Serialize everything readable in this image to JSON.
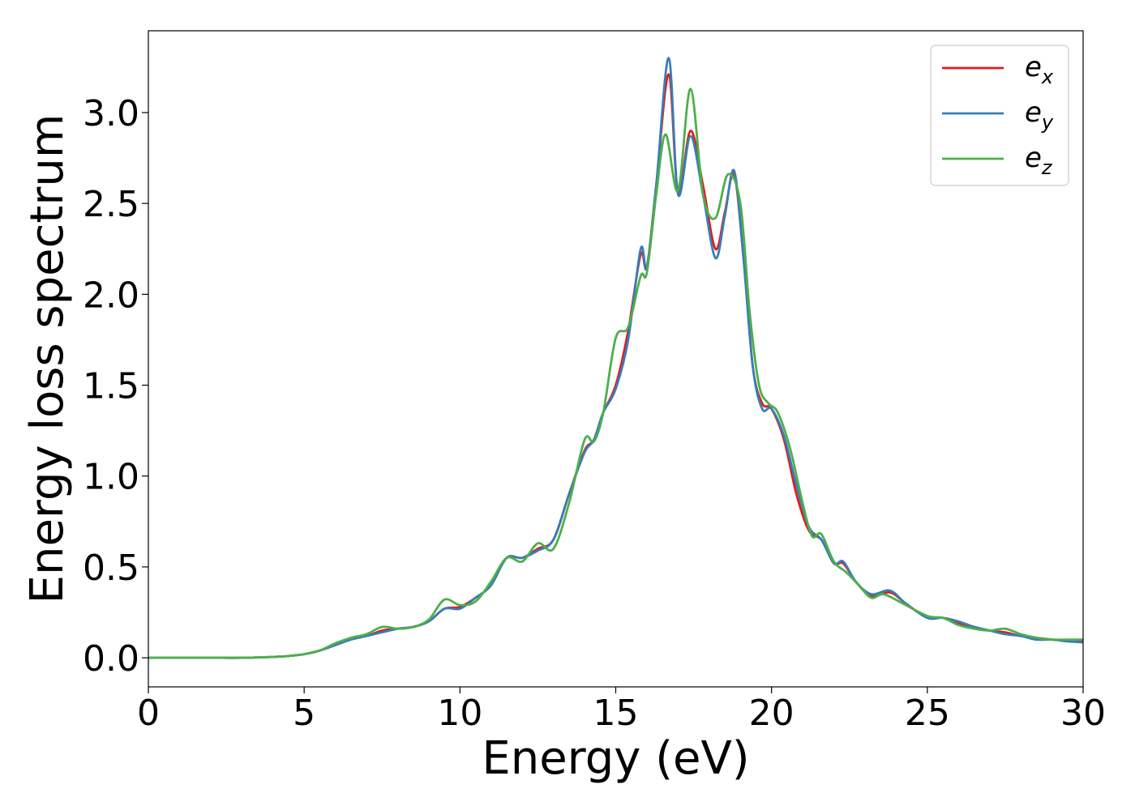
{
  "chart_data": {
    "type": "line",
    "title": "",
    "xlabel": "Energy (eV)",
    "ylabel": "Energy loss spectrum",
    "xlim": [
      0,
      30
    ],
    "ylim": [
      -0.16,
      3.45
    ],
    "xticks": [
      0,
      5,
      10,
      15,
      20,
      25,
      30
    ],
    "yticks": [
      0.0,
      0.5,
      1.0,
      1.5,
      2.0,
      2.5,
      3.0
    ],
    "grid": false,
    "legend_position": "top-right",
    "series": [
      {
        "name": "e_x",
        "label_base": "e",
        "label_sub": "x",
        "color": "#e41a1c",
        "x": [
          0,
          1,
          2,
          3,
          4,
          4.5,
          5,
          5.5,
          6,
          6.5,
          7,
          7.5,
          8,
          8.5,
          9,
          9.5,
          10,
          10.5,
          11,
          11.5,
          12,
          12.5,
          13,
          13.5,
          14,
          14.3,
          14.6,
          15,
          15.4,
          15.8,
          16.0,
          16.3,
          16.7,
          17.0,
          17.4,
          17.8,
          18.2,
          18.5,
          18.8,
          19.1,
          19.4,
          19.7,
          20.0,
          20.4,
          20.8,
          21.2,
          21.6,
          22.0,
          22.3,
          22.7,
          23.2,
          23.8,
          24.3,
          25.0,
          25.5,
          26.0,
          26.5,
          27.0,
          27.5,
          28.0,
          28.5,
          29.0,
          29.5,
          30.0
        ],
        "y": [
          0.0,
          0.0,
          0.0,
          0.0,
          0.005,
          0.01,
          0.02,
          0.04,
          0.07,
          0.11,
          0.12,
          0.15,
          0.16,
          0.17,
          0.2,
          0.27,
          0.28,
          0.33,
          0.4,
          0.55,
          0.55,
          0.6,
          0.65,
          0.9,
          1.14,
          1.2,
          1.35,
          1.5,
          1.8,
          2.22,
          2.15,
          2.6,
          3.21,
          2.56,
          2.9,
          2.6,
          2.25,
          2.45,
          2.66,
          2.2,
          1.6,
          1.4,
          1.37,
          1.2,
          0.9,
          0.7,
          0.65,
          0.52,
          0.52,
          0.42,
          0.34,
          0.36,
          0.3,
          0.22,
          0.22,
          0.19,
          0.17,
          0.15,
          0.14,
          0.12,
          0.11,
          0.1,
          0.095,
          0.09
        ]
      },
      {
        "name": "e_y",
        "label_base": "e",
        "label_sub": "y",
        "color": "#377eb8",
        "x": [
          0,
          1,
          2,
          3,
          4,
          4.5,
          5,
          5.5,
          6,
          6.5,
          7,
          7.5,
          8,
          8.5,
          9,
          9.5,
          10,
          10.5,
          11,
          11.5,
          12,
          12.5,
          13,
          13.5,
          14,
          14.3,
          14.6,
          15,
          15.4,
          15.8,
          16.0,
          16.3,
          16.7,
          17.0,
          17.4,
          17.8,
          18.2,
          18.5,
          18.8,
          19.1,
          19.4,
          19.7,
          20.0,
          20.4,
          20.8,
          21.2,
          21.6,
          22.0,
          22.3,
          22.7,
          23.2,
          23.8,
          24.3,
          25.0,
          25.5,
          26.0,
          26.5,
          27.0,
          27.5,
          28.0,
          28.5,
          29.0,
          29.5,
          30.0
        ],
        "y": [
          0.0,
          0.0,
          0.0,
          0.0,
          0.005,
          0.01,
          0.02,
          0.04,
          0.07,
          0.1,
          0.12,
          0.14,
          0.16,
          0.17,
          0.2,
          0.27,
          0.27,
          0.33,
          0.4,
          0.55,
          0.55,
          0.59,
          0.65,
          0.9,
          1.13,
          1.2,
          1.35,
          1.48,
          1.75,
          2.25,
          2.15,
          2.6,
          3.3,
          2.55,
          2.87,
          2.55,
          2.2,
          2.43,
          2.68,
          2.2,
          1.6,
          1.37,
          1.37,
          1.22,
          0.95,
          0.72,
          0.65,
          0.52,
          0.53,
          0.42,
          0.35,
          0.37,
          0.3,
          0.22,
          0.22,
          0.2,
          0.17,
          0.15,
          0.13,
          0.12,
          0.1,
          0.1,
          0.09,
          0.085
        ]
      },
      {
        "name": "e_z",
        "label_base": "e",
        "label_sub": "z",
        "color": "#4daf4a",
        "x": [
          0,
          1,
          2,
          3,
          4,
          4.5,
          5,
          5.5,
          6,
          6.5,
          7,
          7.5,
          8,
          8.5,
          9,
          9.5,
          10,
          10.5,
          11,
          11.5,
          12,
          12.5,
          13,
          13.5,
          14,
          14.3,
          14.6,
          15,
          15.4,
          15.8,
          16.0,
          16.3,
          16.6,
          17.0,
          17.4,
          17.8,
          18.2,
          18.6,
          19.0,
          19.3,
          19.6,
          19.9,
          20.2,
          20.6,
          21.0,
          21.3,
          21.6,
          22.0,
          22.4,
          22.8,
          23.2,
          23.6,
          24.2,
          25.0,
          25.5,
          26.0,
          26.5,
          27.0,
          27.5,
          28.0,
          28.5,
          29.0,
          29.5,
          30.0
        ],
        "y": [
          0.0,
          0.0,
          0.0,
          0.0,
          0.005,
          0.01,
          0.02,
          0.04,
          0.08,
          0.11,
          0.13,
          0.17,
          0.16,
          0.17,
          0.21,
          0.32,
          0.29,
          0.31,
          0.42,
          0.55,
          0.53,
          0.63,
          0.6,
          0.85,
          1.2,
          1.19,
          1.35,
          1.76,
          1.82,
          2.1,
          2.12,
          2.55,
          2.88,
          2.57,
          3.13,
          2.55,
          2.42,
          2.66,
          2.5,
          1.9,
          1.5,
          1.4,
          1.35,
          1.15,
          0.85,
          0.67,
          0.68,
          0.53,
          0.47,
          0.4,
          0.33,
          0.35,
          0.3,
          0.23,
          0.22,
          0.18,
          0.16,
          0.15,
          0.16,
          0.13,
          0.11,
          0.1,
          0.1,
          0.1
        ]
      }
    ]
  }
}
